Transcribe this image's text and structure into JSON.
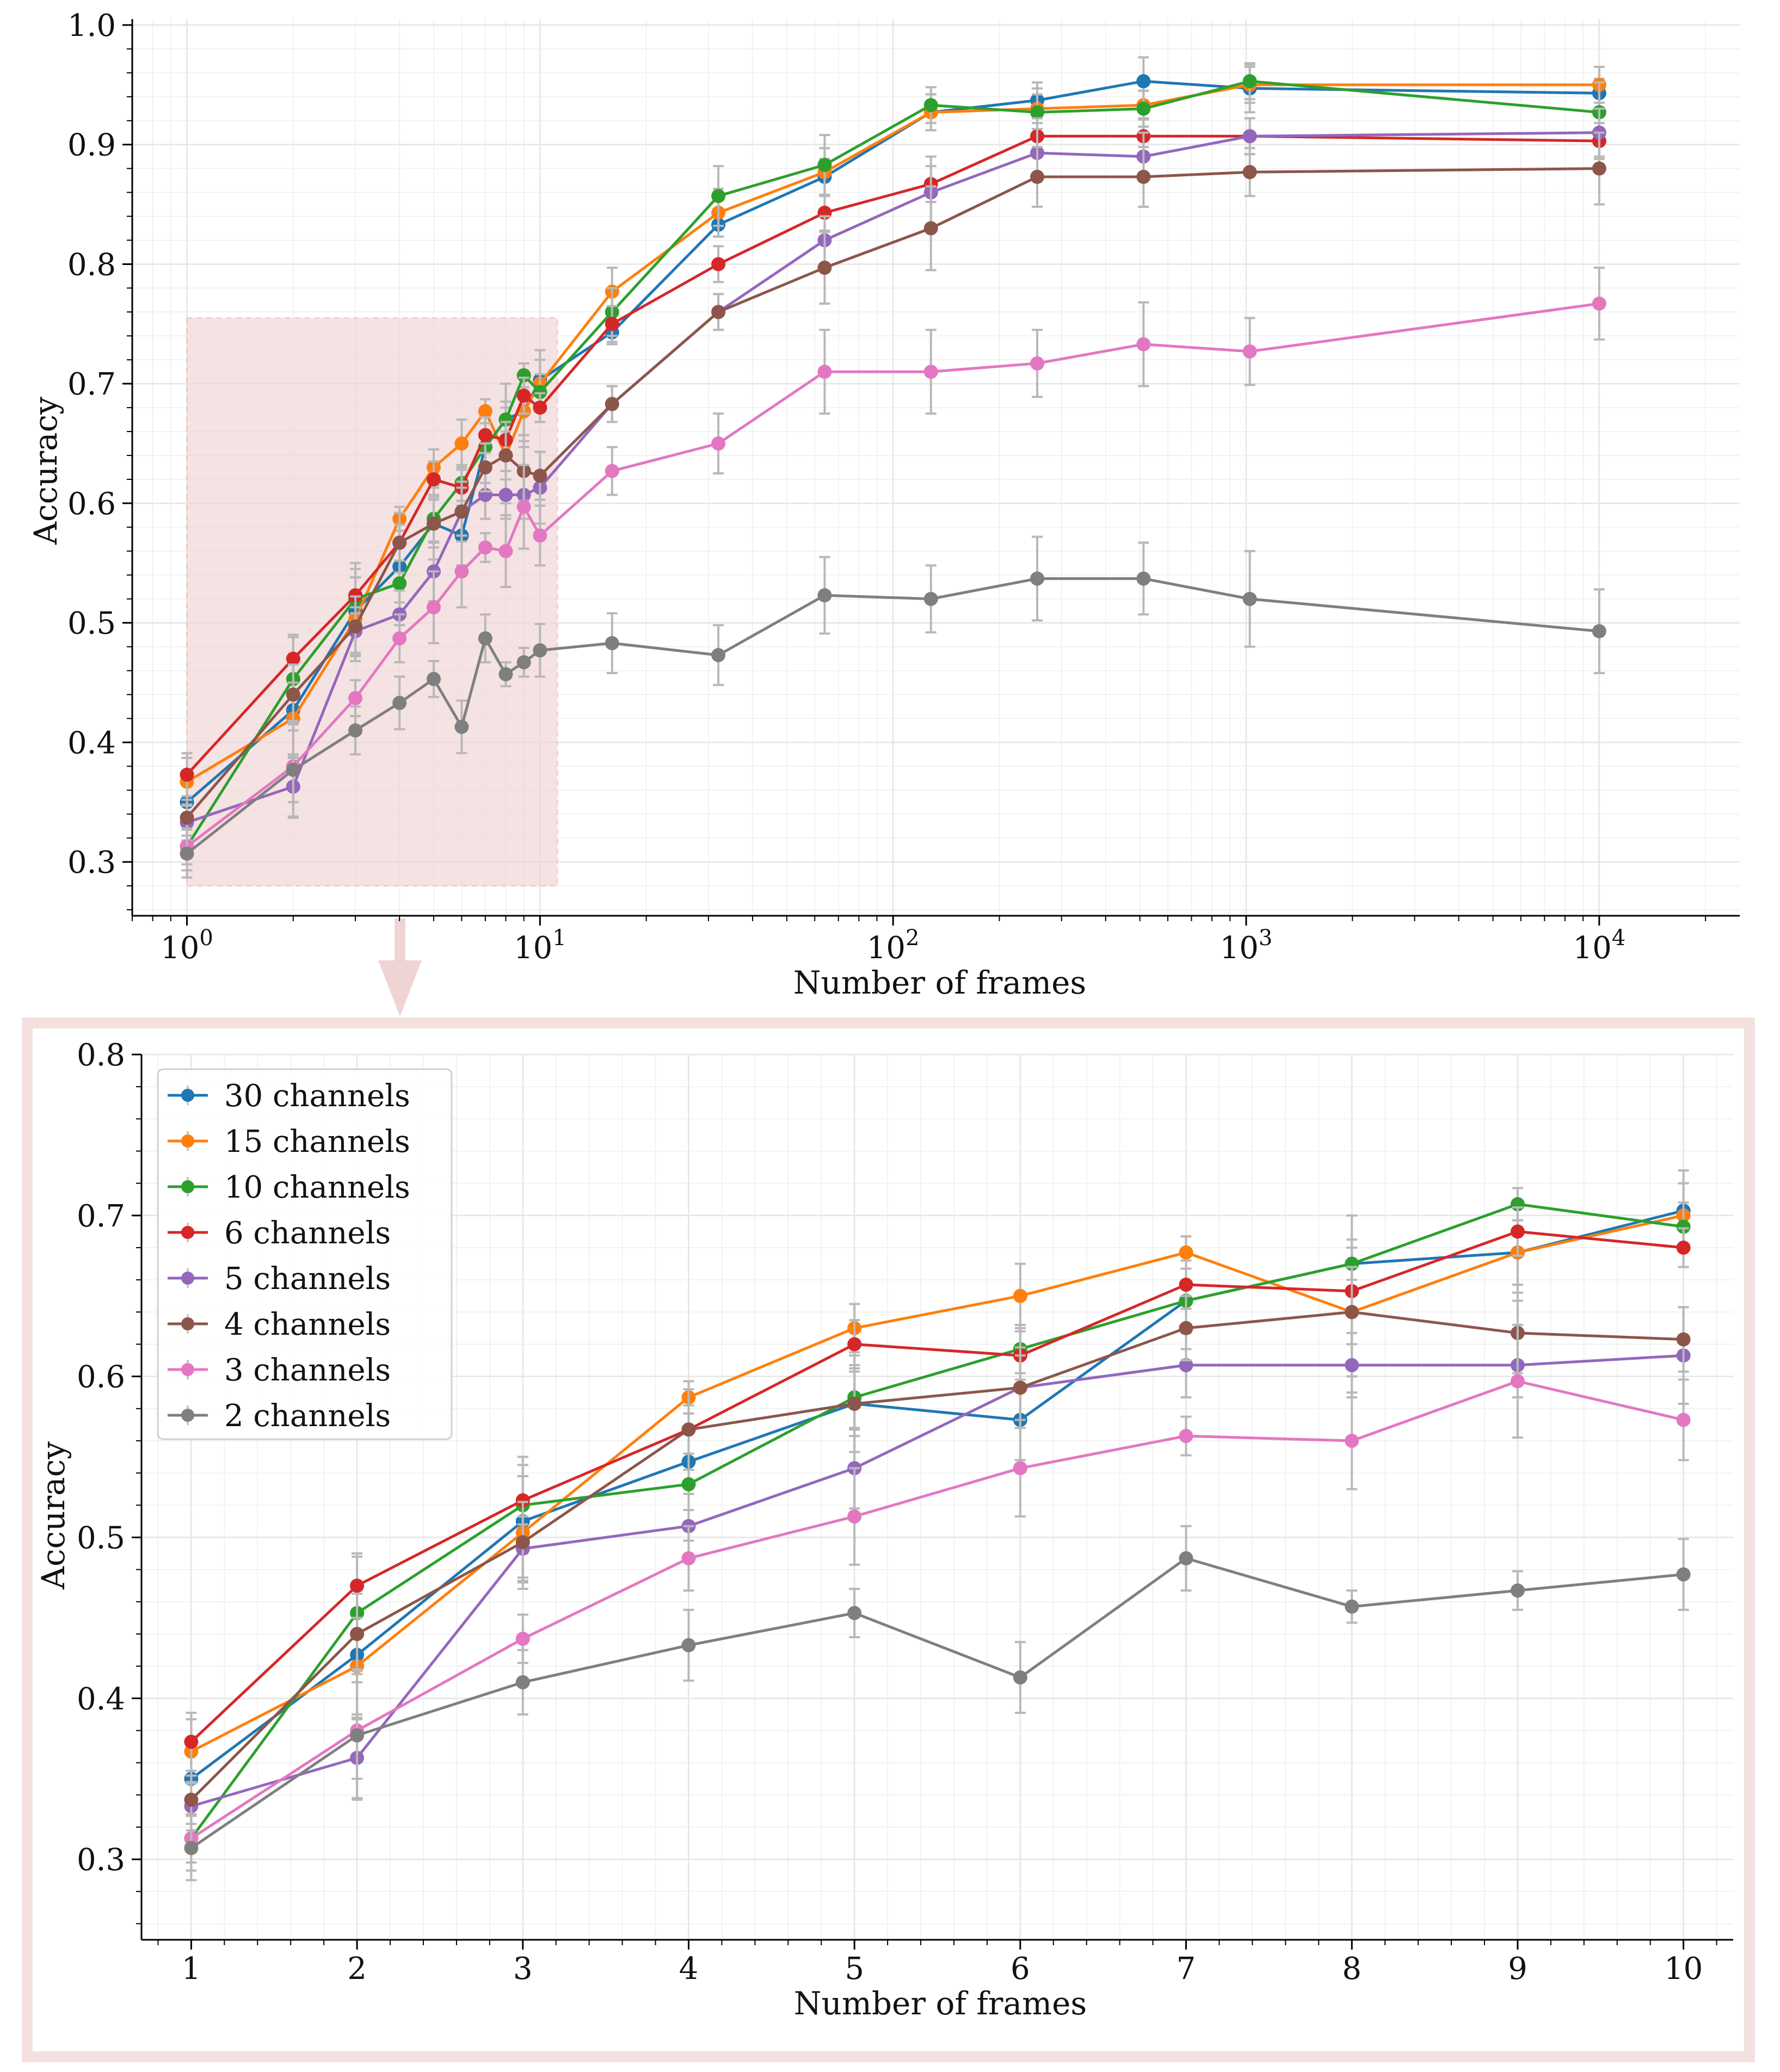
{
  "colors": {
    "30 channels": "#1f77b4",
    "15 channels": "#ff7f0e",
    "10 channels": "#2ca02c",
    "6 channels": "#d62728",
    "5 channels": "#9467bd",
    "4 channels": "#8c564b",
    "3 channels": "#e377c2",
    "2 channels": "#7f7f7f",
    "zoom_box": "#f0d4d4",
    "zoom_border": "#f5e0e0",
    "error_bar": "#b8b8b8",
    "grid": "#e6e6e6"
  },
  "chart_data": [
    {
      "type": "line",
      "name": "overview",
      "x_scale": "log",
      "xlabel": "Number of frames",
      "ylabel": "Accuracy",
      "xlim": [
        0.7,
        25000
      ],
      "ylim": [
        0.255,
        1.005
      ],
      "x_tick_labels": [
        {
          "x": 1,
          "base": "10",
          "exp": "0"
        },
        {
          "x": 10,
          "base": "10",
          "exp": "1"
        },
        {
          "x": 100,
          "base": "10",
          "exp": "2"
        },
        {
          "x": 1000,
          "base": "10",
          "exp": "3"
        },
        {
          "x": 10000,
          "base": "10",
          "exp": "4"
        }
      ],
      "y_ticks": [
        0.3,
        0.4,
        0.5,
        0.6,
        0.7,
        0.8,
        0.9,
        1.0
      ],
      "y_tick_labels": [
        "0.3",
        "0.4",
        "0.5",
        "0.6",
        "0.7",
        "0.8",
        "0.9",
        "1.0"
      ],
      "zoom_region": {
        "x": [
          1,
          11.2
        ],
        "y": [
          0.28,
          0.755
        ]
      },
      "x": [
        1,
        2,
        3,
        4,
        5,
        6,
        7,
        8,
        9,
        10,
        16,
        32,
        64,
        128,
        256,
        512,
        1024,
        10000
      ],
      "series": [
        {
          "name": "30 channels",
          "values": [
            0.35,
            0.427,
            0.51,
            0.547,
            0.583,
            0.573,
            0.647,
            0.67,
            0.677,
            0.703,
            0.743,
            0.833,
            0.873,
            0.927,
            0.937,
            0.953,
            0.947,
            0.943
          ],
          "err": [
            0.015,
            0.04,
            0.035,
            0.03,
            0.03,
            0.025,
            0.03,
            0.03,
            0.03,
            0.025,
            0.01,
            0.01,
            0.015,
            0.015,
            0.015,
            0.02,
            0.02,
            0.012
          ]
        },
        {
          "name": "15 channels",
          "values": [
            0.367,
            0.42,
            0.503,
            0.587,
            0.63,
            0.65,
            0.677,
            0.64,
            0.677,
            0.7,
            0.777,
            0.843,
            0.877,
            0.927,
            0.93,
            0.933,
            0.95,
            0.95
          ],
          "err": [
            0.02,
            0.03,
            0.035,
            0.01,
            0.015,
            0.02,
            0.01,
            0.04,
            0.02,
            0.02,
            0.02,
            0.02,
            0.02,
            0.015,
            0.012,
            0.012,
            0.015,
            0.015
          ]
        },
        {
          "name": "10 channels",
          "values": [
            0.313,
            0.453,
            0.52,
            0.533,
            0.587,
            0.617,
            0.647,
            0.67,
            0.707,
            0.693,
            0.76,
            0.857,
            0.883,
            0.933,
            0.927,
            0.93,
            0.953,
            0.927
          ],
          "err": [
            0.02,
            0.035,
            0.03,
            0.035,
            0.02,
            0.015,
            0.02,
            0.015,
            0.01,
            0.015,
            0.02,
            0.025,
            0.025,
            0.015,
            0.02,
            0.015,
            0.015,
            0.025
          ]
        },
        {
          "name": "6 channels",
          "values": [
            0.373,
            0.47,
            0.523,
            0.567,
            0.62,
            0.613,
            0.657,
            0.653,
            0.69,
            0.68,
            0.75,
            0.8,
            0.843,
            0.867,
            0.907,
            0.907,
            0.907,
            0.903
          ],
          "err": [
            0.018,
            0.02,
            0.015,
            0.015,
            0.015,
            0.015,
            0.015,
            0.015,
            0.015,
            0.012,
            0.015,
            0.015,
            0.015,
            0.015,
            0.015,
            0.015,
            0.015,
            0.015
          ]
        },
        {
          "name": "5 channels",
          "values": [
            0.333,
            0.363,
            0.493,
            0.507,
            0.543,
            0.593,
            0.607,
            0.607,
            0.607,
            0.613,
            0.683,
            0.76,
            0.82,
            0.86,
            0.893,
            0.89,
            0.907,
            0.91
          ],
          "err": [
            0.015,
            0.025,
            0.02,
            0.02,
            0.025,
            0.02,
            0.02,
            0.02,
            0.02,
            0.03,
            0.015,
            0.015,
            0.02,
            0.03,
            0.02,
            0.02,
            0.015,
            0.02
          ]
        },
        {
          "name": "4 channels",
          "values": [
            0.337,
            0.44,
            0.497,
            0.567,
            0.583,
            0.593,
            0.63,
            0.64,
            0.627,
            0.623,
            0.683,
            0.76,
            0.797,
            0.83,
            0.873,
            0.873,
            0.877,
            0.88
          ],
          "err": [
            0.015,
            0.025,
            0.025,
            0.025,
            0.02,
            0.025,
            0.02,
            0.02,
            0.025,
            0.02,
            0.015,
            0.015,
            0.03,
            0.035,
            0.025,
            0.025,
            0.02,
            0.03
          ]
        },
        {
          "name": "3 channels",
          "values": [
            0.313,
            0.38,
            0.437,
            0.487,
            0.513,
            0.543,
            0.563,
            0.56,
            0.597,
            0.573,
            0.627,
            0.65,
            0.71,
            0.71,
            0.717,
            0.733,
            0.727,
            0.767
          ],
          "err": [
            0.015,
            0.03,
            0.015,
            0.02,
            0.03,
            0.03,
            0.012,
            0.03,
            0.035,
            0.025,
            0.02,
            0.025,
            0.035,
            0.035,
            0.028,
            0.035,
            0.028,
            0.03
          ]
        },
        {
          "name": "2 channels",
          "values": [
            0.307,
            0.377,
            0.41,
            0.433,
            0.453,
            0.413,
            0.487,
            0.457,
            0.467,
            0.477,
            0.483,
            0.473,
            0.523,
            0.52,
            0.537,
            0.537,
            0.52,
            0.493
          ],
          "err": [
            0.02,
            0.04,
            0.02,
            0.022,
            0.015,
            0.022,
            0.02,
            0.01,
            0.012,
            0.022,
            0.025,
            0.025,
            0.032,
            0.028,
            0.035,
            0.03,
            0.04,
            0.035
          ]
        }
      ]
    },
    {
      "type": "line",
      "name": "zoom",
      "x_scale": "linear",
      "xlabel": "Number of frames",
      "ylabel": "Accuracy",
      "xlim": [
        0.7,
        10.3
      ],
      "ylim": [
        0.25,
        0.8
      ],
      "x_ticks": [
        1,
        2,
        3,
        4,
        5,
        6,
        7,
        8,
        9,
        10
      ],
      "x_tick_labels": [
        "1",
        "2",
        "3",
        "4",
        "5",
        "6",
        "7",
        "8",
        "9",
        "10"
      ],
      "y_ticks": [
        0.3,
        0.4,
        0.5,
        0.6,
        0.7,
        0.8
      ],
      "y_tick_labels": [
        "0.3",
        "0.4",
        "0.5",
        "0.6",
        "0.7",
        "0.8"
      ],
      "legend_position": "top-left",
      "x": [
        1,
        2,
        3,
        4,
        5,
        6,
        7,
        8,
        9,
        10
      ],
      "series": [
        {
          "name": "30 channels",
          "values": [
            0.35,
            0.427,
            0.51,
            0.547,
            0.583,
            0.573,
            0.647,
            0.67,
            0.677,
            0.703
          ],
          "err": [
            0.015,
            0.04,
            0.035,
            0.03,
            0.03,
            0.025,
            0.03,
            0.03,
            0.03,
            0.025
          ]
        },
        {
          "name": "15 channels",
          "values": [
            0.367,
            0.42,
            0.503,
            0.587,
            0.63,
            0.65,
            0.677,
            0.64,
            0.677,
            0.7
          ],
          "err": [
            0.02,
            0.03,
            0.035,
            0.01,
            0.015,
            0.02,
            0.01,
            0.04,
            0.02,
            0.02
          ]
        },
        {
          "name": "10 channels",
          "values": [
            0.313,
            0.453,
            0.52,
            0.533,
            0.587,
            0.617,
            0.647,
            0.67,
            0.707,
            0.693
          ],
          "err": [
            0.02,
            0.035,
            0.03,
            0.035,
            0.02,
            0.015,
            0.02,
            0.015,
            0.01,
            0.015
          ]
        },
        {
          "name": "6 channels",
          "values": [
            0.373,
            0.47,
            0.523,
            0.567,
            0.62,
            0.613,
            0.657,
            0.653,
            0.69,
            0.68
          ],
          "err": [
            0.018,
            0.02,
            0.015,
            0.015,
            0.015,
            0.015,
            0.015,
            0.015,
            0.015,
            0.012
          ]
        },
        {
          "name": "5 channels",
          "values": [
            0.333,
            0.363,
            0.493,
            0.507,
            0.543,
            0.593,
            0.607,
            0.607,
            0.607,
            0.613
          ],
          "err": [
            0.015,
            0.025,
            0.02,
            0.02,
            0.025,
            0.02,
            0.02,
            0.02,
            0.02,
            0.03
          ]
        },
        {
          "name": "4 channels",
          "values": [
            0.337,
            0.44,
            0.497,
            0.567,
            0.583,
            0.593,
            0.63,
            0.64,
            0.627,
            0.623
          ],
          "err": [
            0.015,
            0.025,
            0.025,
            0.025,
            0.02,
            0.025,
            0.02,
            0.02,
            0.025,
            0.02
          ]
        },
        {
          "name": "3 channels",
          "values": [
            0.313,
            0.38,
            0.437,
            0.487,
            0.513,
            0.543,
            0.563,
            0.56,
            0.597,
            0.573
          ],
          "err": [
            0.015,
            0.03,
            0.015,
            0.02,
            0.03,
            0.03,
            0.012,
            0.03,
            0.035,
            0.025
          ]
        },
        {
          "name": "2 channels",
          "values": [
            0.307,
            0.377,
            0.41,
            0.433,
            0.453,
            0.413,
            0.487,
            0.457,
            0.467,
            0.477
          ],
          "err": [
            0.02,
            0.04,
            0.02,
            0.022,
            0.015,
            0.022,
            0.02,
            0.01,
            0.012,
            0.022
          ]
        }
      ]
    }
  ]
}
